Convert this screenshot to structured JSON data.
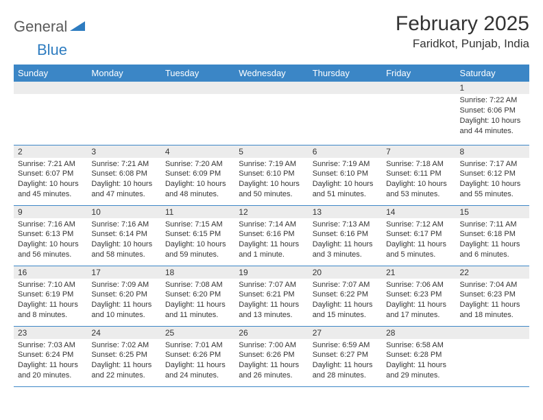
{
  "logo": {
    "text1": "General",
    "text2": "Blue"
  },
  "title": "February 2025",
  "location": "Faridkot, Punjab, India",
  "colors": {
    "header_bg": "#3b86c6",
    "header_fg": "#ffffff",
    "daynum_bg": "#ececec",
    "border": "#3b86c6",
    "text": "#333333",
    "logo_gray": "#5a5a5a",
    "logo_blue": "#2e7cc0"
  },
  "weekdays": [
    "Sunday",
    "Monday",
    "Tuesday",
    "Wednesday",
    "Thursday",
    "Friday",
    "Saturday"
  ],
  "weeks": [
    [
      null,
      null,
      null,
      null,
      null,
      null,
      {
        "n": "1",
        "sr": "Sunrise: 7:22 AM",
        "ss": "Sunset: 6:06 PM",
        "dl": "Daylight: 10 hours and 44 minutes."
      }
    ],
    [
      {
        "n": "2",
        "sr": "Sunrise: 7:21 AM",
        "ss": "Sunset: 6:07 PM",
        "dl": "Daylight: 10 hours and 45 minutes."
      },
      {
        "n": "3",
        "sr": "Sunrise: 7:21 AM",
        "ss": "Sunset: 6:08 PM",
        "dl": "Daylight: 10 hours and 47 minutes."
      },
      {
        "n": "4",
        "sr": "Sunrise: 7:20 AM",
        "ss": "Sunset: 6:09 PM",
        "dl": "Daylight: 10 hours and 48 minutes."
      },
      {
        "n": "5",
        "sr": "Sunrise: 7:19 AM",
        "ss": "Sunset: 6:10 PM",
        "dl": "Daylight: 10 hours and 50 minutes."
      },
      {
        "n": "6",
        "sr": "Sunrise: 7:19 AM",
        "ss": "Sunset: 6:10 PM",
        "dl": "Daylight: 10 hours and 51 minutes."
      },
      {
        "n": "7",
        "sr": "Sunrise: 7:18 AM",
        "ss": "Sunset: 6:11 PM",
        "dl": "Daylight: 10 hours and 53 minutes."
      },
      {
        "n": "8",
        "sr": "Sunrise: 7:17 AM",
        "ss": "Sunset: 6:12 PM",
        "dl": "Daylight: 10 hours and 55 minutes."
      }
    ],
    [
      {
        "n": "9",
        "sr": "Sunrise: 7:16 AM",
        "ss": "Sunset: 6:13 PM",
        "dl": "Daylight: 10 hours and 56 minutes."
      },
      {
        "n": "10",
        "sr": "Sunrise: 7:16 AM",
        "ss": "Sunset: 6:14 PM",
        "dl": "Daylight: 10 hours and 58 minutes."
      },
      {
        "n": "11",
        "sr": "Sunrise: 7:15 AM",
        "ss": "Sunset: 6:15 PM",
        "dl": "Daylight: 10 hours and 59 minutes."
      },
      {
        "n": "12",
        "sr": "Sunrise: 7:14 AM",
        "ss": "Sunset: 6:16 PM",
        "dl": "Daylight: 11 hours and 1 minute."
      },
      {
        "n": "13",
        "sr": "Sunrise: 7:13 AM",
        "ss": "Sunset: 6:16 PM",
        "dl": "Daylight: 11 hours and 3 minutes."
      },
      {
        "n": "14",
        "sr": "Sunrise: 7:12 AM",
        "ss": "Sunset: 6:17 PM",
        "dl": "Daylight: 11 hours and 5 minutes."
      },
      {
        "n": "15",
        "sr": "Sunrise: 7:11 AM",
        "ss": "Sunset: 6:18 PM",
        "dl": "Daylight: 11 hours and 6 minutes."
      }
    ],
    [
      {
        "n": "16",
        "sr": "Sunrise: 7:10 AM",
        "ss": "Sunset: 6:19 PM",
        "dl": "Daylight: 11 hours and 8 minutes."
      },
      {
        "n": "17",
        "sr": "Sunrise: 7:09 AM",
        "ss": "Sunset: 6:20 PM",
        "dl": "Daylight: 11 hours and 10 minutes."
      },
      {
        "n": "18",
        "sr": "Sunrise: 7:08 AM",
        "ss": "Sunset: 6:20 PM",
        "dl": "Daylight: 11 hours and 11 minutes."
      },
      {
        "n": "19",
        "sr": "Sunrise: 7:07 AM",
        "ss": "Sunset: 6:21 PM",
        "dl": "Daylight: 11 hours and 13 minutes."
      },
      {
        "n": "20",
        "sr": "Sunrise: 7:07 AM",
        "ss": "Sunset: 6:22 PM",
        "dl": "Daylight: 11 hours and 15 minutes."
      },
      {
        "n": "21",
        "sr": "Sunrise: 7:06 AM",
        "ss": "Sunset: 6:23 PM",
        "dl": "Daylight: 11 hours and 17 minutes."
      },
      {
        "n": "22",
        "sr": "Sunrise: 7:04 AM",
        "ss": "Sunset: 6:23 PM",
        "dl": "Daylight: 11 hours and 18 minutes."
      }
    ],
    [
      {
        "n": "23",
        "sr": "Sunrise: 7:03 AM",
        "ss": "Sunset: 6:24 PM",
        "dl": "Daylight: 11 hours and 20 minutes."
      },
      {
        "n": "24",
        "sr": "Sunrise: 7:02 AM",
        "ss": "Sunset: 6:25 PM",
        "dl": "Daylight: 11 hours and 22 minutes."
      },
      {
        "n": "25",
        "sr": "Sunrise: 7:01 AM",
        "ss": "Sunset: 6:26 PM",
        "dl": "Daylight: 11 hours and 24 minutes."
      },
      {
        "n": "26",
        "sr": "Sunrise: 7:00 AM",
        "ss": "Sunset: 6:26 PM",
        "dl": "Daylight: 11 hours and 26 minutes."
      },
      {
        "n": "27",
        "sr": "Sunrise: 6:59 AM",
        "ss": "Sunset: 6:27 PM",
        "dl": "Daylight: 11 hours and 28 minutes."
      },
      {
        "n": "28",
        "sr": "Sunrise: 6:58 AM",
        "ss": "Sunset: 6:28 PM",
        "dl": "Daylight: 11 hours and 29 minutes."
      },
      null
    ]
  ]
}
